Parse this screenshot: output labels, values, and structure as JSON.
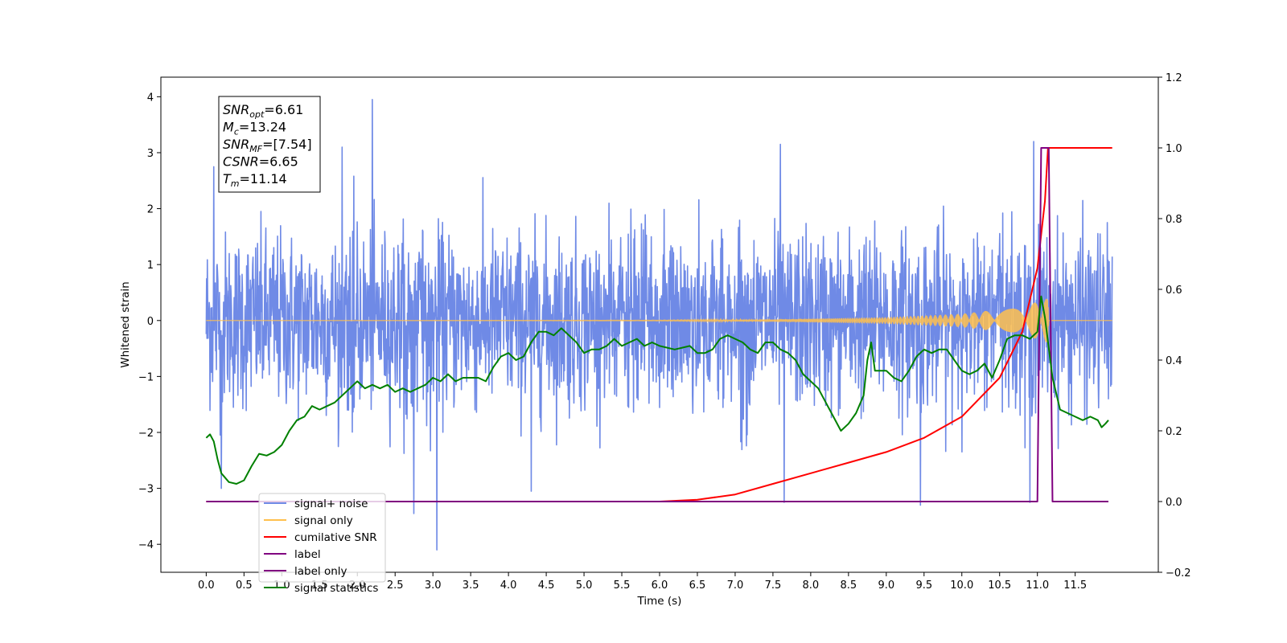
{
  "chart_data": {
    "type": "line",
    "xlabel": "Time (s)",
    "ylabel_left": "Whitened strain",
    "xlim": [
      -0.6,
      12.6
    ],
    "ylim_left": [
      -4.5,
      4.35
    ],
    "ylim_right": [
      -0.2,
      1.2
    ],
    "x_ticks": [
      0.0,
      0.5,
      1.0,
      1.5,
      2.0,
      2.5,
      3.0,
      3.5,
      4.0,
      4.5,
      5.0,
      5.5,
      6.0,
      6.5,
      7.0,
      7.5,
      8.0,
      8.5,
      9.0,
      9.5,
      10.0,
      10.5,
      11.0,
      11.5
    ],
    "x_tick_labels": [
      "0.0",
      "0.5",
      "1.0",
      "1.5",
      "2.0",
      "2.5",
      "3.0",
      "3.5",
      "4.0",
      "4.5",
      "5.0",
      "5.5",
      "6.0",
      "6.5",
      "7.0",
      "7.5",
      "8.0",
      "8.5",
      "9.0",
      "9.5",
      "10.0",
      "10.5",
      "11.0",
      "11.5"
    ],
    "y_left_ticks": [
      -4,
      -3,
      -2,
      -1,
      0,
      1,
      2,
      3,
      4
    ],
    "y_left_tick_labels": [
      "−4",
      "−3",
      "−2",
      "−1",
      "0",
      "1",
      "2",
      "3",
      "4"
    ],
    "y_right_ticks": [
      -0.2,
      0.0,
      0.2,
      0.4,
      0.6,
      0.8,
      1.0,
      1.2
    ],
    "y_right_tick_labels": [
      "−0.2",
      "0.0",
      "0.2",
      "0.4",
      "0.6",
      "0.8",
      "1.0",
      "1.2"
    ],
    "grid": false,
    "legend_position": "bottom-left",
    "legend": [
      {
        "name": "signal+ noise",
        "color": "#6f8ae6"
      },
      {
        "name": "signal only",
        "color": "#ffc04d"
      },
      {
        "name": "cumilative SNR",
        "color": "#ff0000"
      },
      {
        "name": "label",
        "color": "#800080"
      },
      {
        "name": "label only",
        "color": "#800080"
      },
      {
        "name": "signal statistics",
        "color": "#008000"
      }
    ],
    "annotation": {
      "lines": [
        {
          "sym": "SNR",
          "sub": "opt",
          "value": "=6.61"
        },
        {
          "sym": "M",
          "sub": "c",
          "value": "=13.24"
        },
        {
          "sym": "SNR",
          "sub": "MF",
          "value": "=[7.54]"
        },
        {
          "sym": "CSNR",
          "sub": "",
          "value": "=6.65"
        },
        {
          "sym": "T",
          "sub": "m",
          "value": "=11.14"
        }
      ]
    },
    "series": [
      {
        "name": "signal+ noise",
        "axis": "left",
        "color": "#6f8ae6",
        "x_range": [
          0.0,
          11.99
        ],
        "envelope_typical": [
          -1.9,
          2.2
        ],
        "spikes": [
          {
            "x": 0.1,
            "y": 2.75
          },
          {
            "x": 0.2,
            "y": -3.0
          },
          {
            "x": 1.8,
            "y": 3.1
          },
          {
            "x": 2.2,
            "y": 3.95
          },
          {
            "x": 2.75,
            "y": -3.45
          },
          {
            "x": 3.05,
            "y": -4.1
          },
          {
            "x": 4.3,
            "y": -3.05
          },
          {
            "x": 7.6,
            "y": 3.15
          },
          {
            "x": 7.65,
            "y": -3.25
          },
          {
            "x": 9.45,
            "y": -3.3
          },
          {
            "x": 10.95,
            "y": 3.2
          },
          {
            "x": 10.9,
            "y": -3.25
          }
        ]
      },
      {
        "name": "signal only",
        "axis": "left",
        "color": "#ffc04d",
        "amplitude": [
          [
            0.0,
            0.0
          ],
          [
            6.0,
            0.005
          ],
          [
            7.5,
            0.02
          ],
          [
            9.0,
            0.06
          ],
          [
            10.0,
            0.12
          ],
          [
            10.5,
            0.2
          ],
          [
            11.0,
            0.33
          ],
          [
            11.14,
            0.4
          ],
          [
            11.15,
            0.0
          ],
          [
            11.99,
            0.0
          ]
        ]
      },
      {
        "name": "cumilative SNR",
        "axis": "right",
        "color": "#ff0000",
        "points": [
          [
            0.0,
            0.0
          ],
          [
            6.0,
            0.0
          ],
          [
            6.5,
            0.005
          ],
          [
            7.0,
            0.02
          ],
          [
            7.5,
            0.05
          ],
          [
            8.0,
            0.08
          ],
          [
            8.5,
            0.11
          ],
          [
            9.0,
            0.14
          ],
          [
            9.5,
            0.18
          ],
          [
            10.0,
            0.24
          ],
          [
            10.5,
            0.35
          ],
          [
            10.8,
            0.48
          ],
          [
            11.0,
            0.66
          ],
          [
            11.1,
            0.85
          ],
          [
            11.14,
            1.0
          ],
          [
            11.99,
            1.0
          ]
        ]
      },
      {
        "name": "label",
        "axis": "right",
        "color": "#800080",
        "points": [
          [
            0.0,
            0.0
          ],
          [
            11.0,
            0.0
          ],
          [
            11.05,
            1.0
          ],
          [
            11.15,
            1.0
          ],
          [
            11.2,
            0.0
          ],
          [
            11.94,
            0.0
          ]
        ]
      },
      {
        "name": "signal statistics",
        "axis": "right",
        "color": "#008000",
        "points": [
          [
            0.0,
            0.18
          ],
          [
            0.05,
            0.19
          ],
          [
            0.1,
            0.17
          ],
          [
            0.15,
            0.12
          ],
          [
            0.2,
            0.08
          ],
          [
            0.3,
            0.055
          ],
          [
            0.4,
            0.05
          ],
          [
            0.5,
            0.06
          ],
          [
            0.6,
            0.1
          ],
          [
            0.7,
            0.135
          ],
          [
            0.8,
            0.13
          ],
          [
            0.9,
            0.14
          ],
          [
            1.0,
            0.16
          ],
          [
            1.1,
            0.2
          ],
          [
            1.2,
            0.23
          ],
          [
            1.3,
            0.24
          ],
          [
            1.4,
            0.27
          ],
          [
            1.5,
            0.26
          ],
          [
            1.6,
            0.27
          ],
          [
            1.7,
            0.28
          ],
          [
            1.8,
            0.3
          ],
          [
            1.9,
            0.32
          ],
          [
            2.0,
            0.34
          ],
          [
            2.1,
            0.32
          ],
          [
            2.2,
            0.33
          ],
          [
            2.3,
            0.32
          ],
          [
            2.4,
            0.33
          ],
          [
            2.5,
            0.31
          ],
          [
            2.6,
            0.32
          ],
          [
            2.7,
            0.31
          ],
          [
            2.8,
            0.32
          ],
          [
            2.9,
            0.33
          ],
          [
            3.0,
            0.35
          ],
          [
            3.1,
            0.34
          ],
          [
            3.2,
            0.36
          ],
          [
            3.3,
            0.34
          ],
          [
            3.4,
            0.35
          ],
          [
            3.6,
            0.35
          ],
          [
            3.7,
            0.34
          ],
          [
            3.8,
            0.38
          ],
          [
            3.9,
            0.41
          ],
          [
            4.0,
            0.42
          ],
          [
            4.1,
            0.4
          ],
          [
            4.2,
            0.41
          ],
          [
            4.3,
            0.45
          ],
          [
            4.4,
            0.48
          ],
          [
            4.5,
            0.48
          ],
          [
            4.6,
            0.47
          ],
          [
            4.7,
            0.49
          ],
          [
            4.8,
            0.47
          ],
          [
            4.9,
            0.45
          ],
          [
            5.0,
            0.42
          ],
          [
            5.1,
            0.43
          ],
          [
            5.2,
            0.43
          ],
          [
            5.3,
            0.44
          ],
          [
            5.4,
            0.46
          ],
          [
            5.5,
            0.44
          ],
          [
            5.6,
            0.45
          ],
          [
            5.7,
            0.46
          ],
          [
            5.8,
            0.44
          ],
          [
            5.9,
            0.45
          ],
          [
            6.0,
            0.44
          ],
          [
            6.2,
            0.43
          ],
          [
            6.4,
            0.44
          ],
          [
            6.5,
            0.42
          ],
          [
            6.6,
            0.42
          ],
          [
            6.7,
            0.43
          ],
          [
            6.8,
            0.46
          ],
          [
            6.9,
            0.47
          ],
          [
            7.0,
            0.46
          ],
          [
            7.1,
            0.45
          ],
          [
            7.2,
            0.43
          ],
          [
            7.3,
            0.42
          ],
          [
            7.4,
            0.45
          ],
          [
            7.5,
            0.45
          ],
          [
            7.6,
            0.43
          ],
          [
            7.7,
            0.42
          ],
          [
            7.8,
            0.4
          ],
          [
            7.9,
            0.36
          ],
          [
            8.0,
            0.34
          ],
          [
            8.1,
            0.32
          ],
          [
            8.2,
            0.28
          ],
          [
            8.3,
            0.24
          ],
          [
            8.4,
            0.2
          ],
          [
            8.5,
            0.22
          ],
          [
            8.6,
            0.25
          ],
          [
            8.7,
            0.3
          ],
          [
            8.75,
            0.4
          ],
          [
            8.8,
            0.45
          ],
          [
            8.85,
            0.37
          ],
          [
            8.9,
            0.37
          ],
          [
            9.0,
            0.37
          ],
          [
            9.1,
            0.35
          ],
          [
            9.2,
            0.34
          ],
          [
            9.3,
            0.37
          ],
          [
            9.4,
            0.41
          ],
          [
            9.5,
            0.43
          ],
          [
            9.6,
            0.42
          ],
          [
            9.7,
            0.43
          ],
          [
            9.8,
            0.43
          ],
          [
            9.9,
            0.4
          ],
          [
            10.0,
            0.37
          ],
          [
            10.1,
            0.36
          ],
          [
            10.2,
            0.37
          ],
          [
            10.3,
            0.39
          ],
          [
            10.4,
            0.35
          ],
          [
            10.5,
            0.4
          ],
          [
            10.6,
            0.46
          ],
          [
            10.7,
            0.47
          ],
          [
            10.8,
            0.47
          ],
          [
            10.9,
            0.46
          ],
          [
            11.0,
            0.48
          ],
          [
            11.05,
            0.58
          ],
          [
            11.1,
            0.52
          ],
          [
            11.2,
            0.35
          ],
          [
            11.3,
            0.26
          ],
          [
            11.4,
            0.25
          ],
          [
            11.5,
            0.24
          ],
          [
            11.6,
            0.23
          ],
          [
            11.7,
            0.24
          ],
          [
            11.8,
            0.23
          ],
          [
            11.85,
            0.21
          ],
          [
            11.9,
            0.22
          ],
          [
            11.94,
            0.23
          ]
        ]
      }
    ]
  }
}
